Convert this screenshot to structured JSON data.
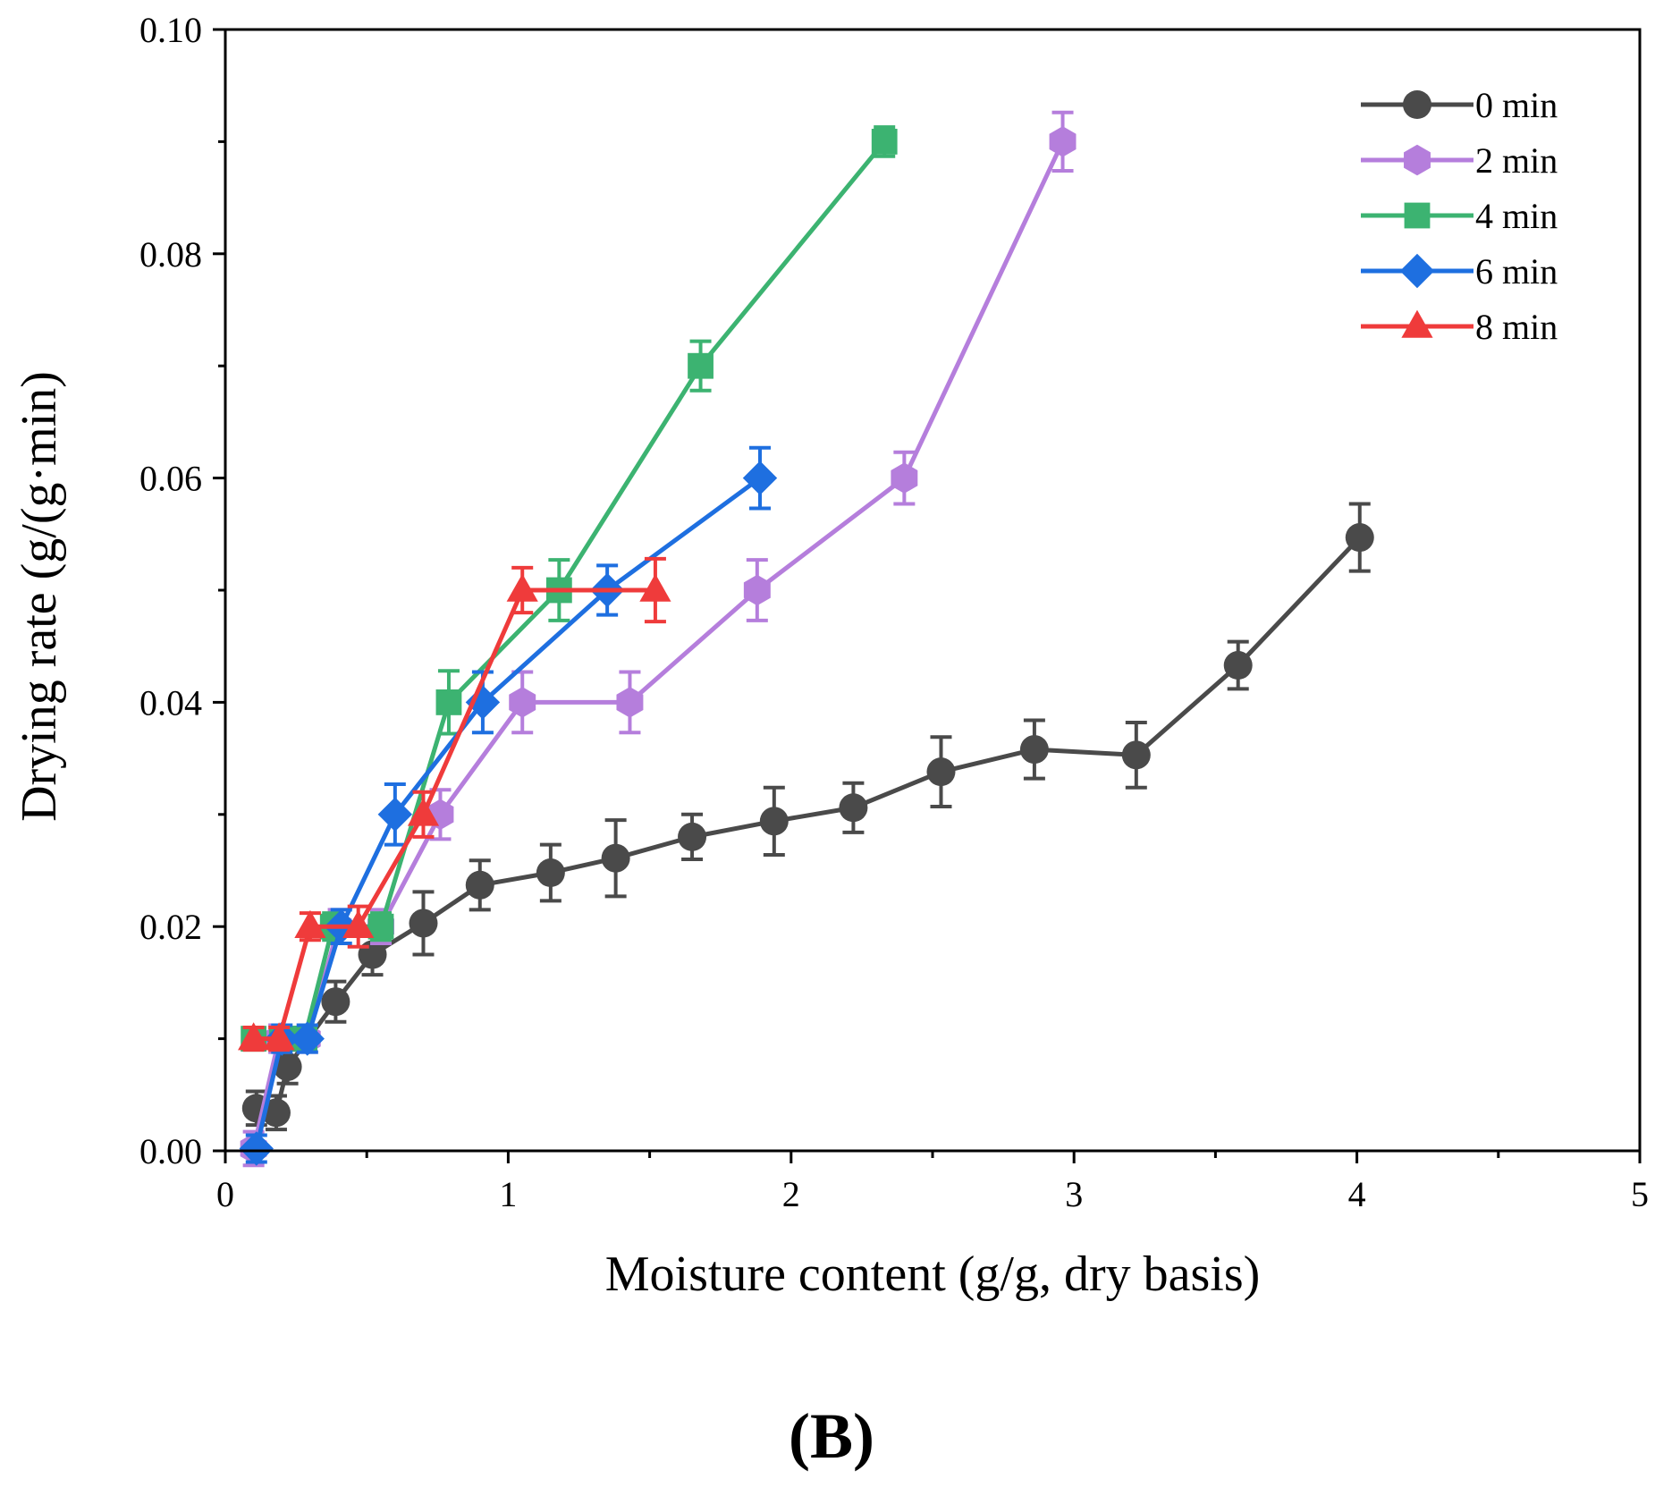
{
  "chart_data": {
    "type": "line",
    "xlabel": "Moisture content (g/g, dry basis)",
    "ylabel": "Drying rate (g/(g·min)",
    "panel_label": "(B)",
    "xlim": [
      0,
      5
    ],
    "ylim": [
      0,
      0.1
    ],
    "x_ticks": [
      0,
      1,
      2,
      3,
      4,
      5
    ],
    "x_tick_labels": [
      "0",
      "1",
      "2",
      "3",
      "4",
      "5"
    ],
    "x_minor_ticks": [
      0.5,
      1.5,
      2.5,
      3.5,
      4.5
    ],
    "y_ticks": [
      0,
      0.02,
      0.04,
      0.06,
      0.08,
      0.1
    ],
    "y_tick_labels": [
      "0.00",
      "0.02",
      "0.04",
      "0.06",
      "0.08",
      "0.10"
    ],
    "y_minor_ticks": [
      0.01,
      0.03,
      0.05,
      0.07,
      0.09
    ],
    "grid": false,
    "legend_position": "top-right",
    "series": [
      {
        "name": "0 min",
        "color": "#4a4a4a",
        "marker": "circle",
        "x": [
          0.11,
          0.18,
          0.22,
          0.39,
          0.52,
          0.7,
          0.9,
          1.15,
          1.38,
          1.65,
          1.94,
          2.22,
          2.53,
          2.86,
          3.22,
          3.58,
          4.01
        ],
        "y": [
          0.0038,
          0.0034,
          0.0075,
          0.0133,
          0.0175,
          0.0203,
          0.0237,
          0.0248,
          0.0261,
          0.028,
          0.0294,
          0.0306,
          0.0338,
          0.0358,
          0.0353,
          0.0433,
          0.0547
        ],
        "err": [
          0.0015,
          0.0015,
          0.0015,
          0.0018,
          0.0018,
          0.0028,
          0.0022,
          0.0025,
          0.0034,
          0.002,
          0.003,
          0.0022,
          0.0031,
          0.0026,
          0.0029,
          0.0021,
          0.003
        ]
      },
      {
        "name": "2 min",
        "color": "#b57edc",
        "marker": "hexagon",
        "x": [
          0.1,
          0.19,
          0.29,
          0.4,
          0.55,
          0.76,
          1.05,
          1.43,
          1.88,
          2.4,
          2.96
        ],
        "y": [
          0.0002,
          0.01,
          0.01,
          0.02,
          0.02,
          0.03,
          0.04,
          0.04,
          0.05,
          0.06,
          0.09
        ],
        "err": [
          0.0015,
          0.0012,
          0.0012,
          0.0015,
          0.0015,
          0.0022,
          0.0027,
          0.0027,
          0.0027,
          0.0023,
          0.0026
        ]
      },
      {
        "name": "4 min",
        "color": "#3cb371",
        "marker": "square",
        "x": [
          0.1,
          0.2,
          0.28,
          0.38,
          0.55,
          0.79,
          1.18,
          1.68,
          2.33
        ],
        "y": [
          0.01,
          0.01,
          0.01,
          0.02,
          0.02,
          0.04,
          0.05,
          0.07,
          0.09
        ],
        "err": [
          0.001,
          0.001,
          0.001,
          0.0012,
          0.0012,
          0.0028,
          0.0027,
          0.0022,
          0.0013
        ]
      },
      {
        "name": "6 min",
        "color": "#1e6fe0",
        "marker": "diamond",
        "x": [
          0.11,
          0.2,
          0.29,
          0.41,
          0.6,
          0.91,
          1.35,
          1.89
        ],
        "y": [
          0.0002,
          0.01,
          0.01,
          0.02,
          0.03,
          0.04,
          0.05,
          0.06
        ],
        "err": [
          0.0012,
          0.0012,
          0.0012,
          0.0015,
          0.0027,
          0.0027,
          0.0022,
          0.0027
        ]
      },
      {
        "name": "8 min",
        "color": "#ef3b3b",
        "marker": "triangle",
        "x": [
          0.1,
          0.19,
          0.3,
          0.47,
          0.7,
          1.05,
          1.52
        ],
        "y": [
          0.01,
          0.01,
          0.02,
          0.02,
          0.03,
          0.05,
          0.05
        ],
        "err": [
          0.001,
          0.001,
          0.0012,
          0.0018,
          0.002,
          0.002,
          0.0028
        ]
      }
    ]
  }
}
